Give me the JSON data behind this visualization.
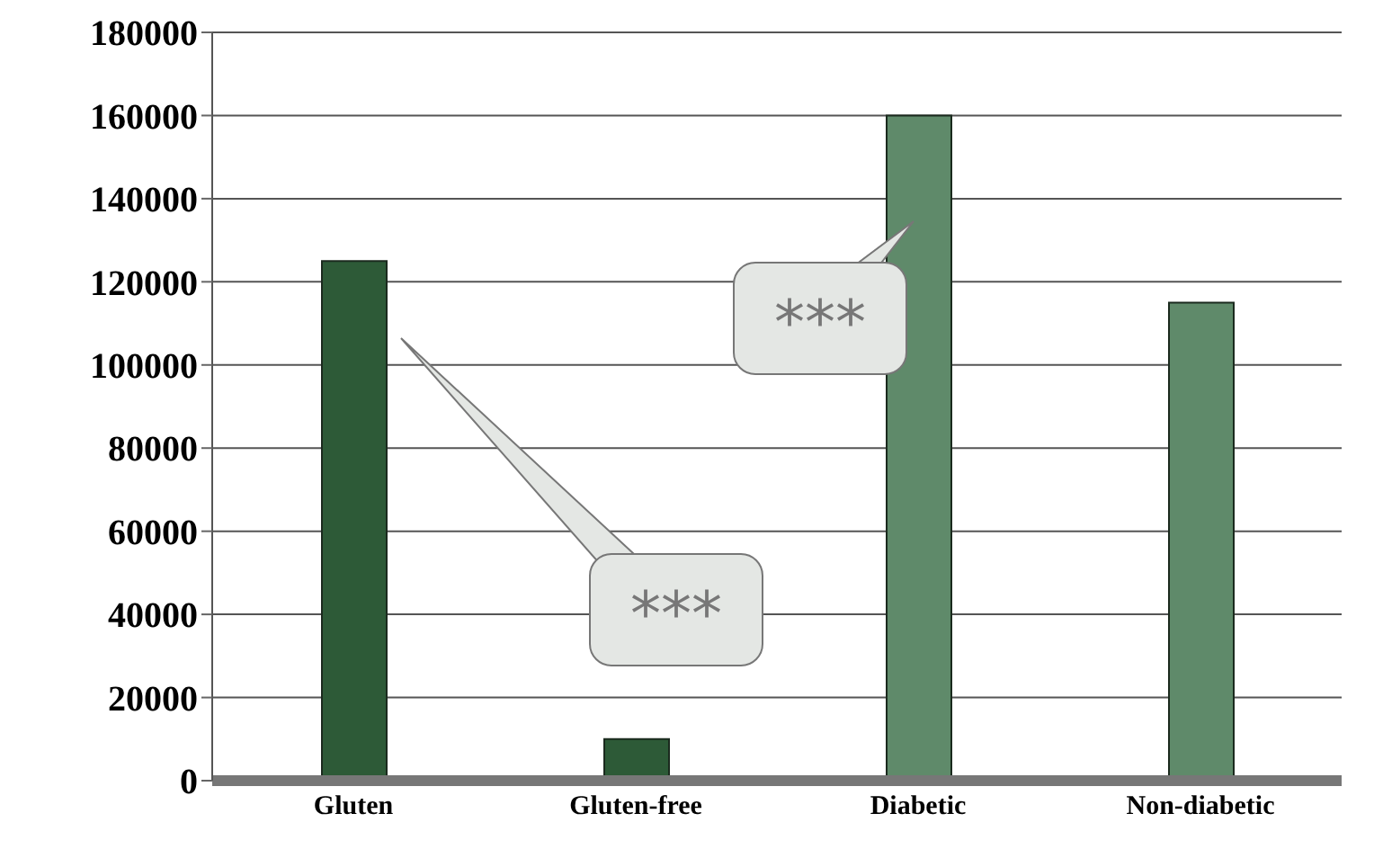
{
  "chart_data": {
    "type": "bar",
    "categories": [
      "Gluten",
      "Gluten-free",
      "Diabetic",
      "Non-diabetic"
    ],
    "values": [
      125000,
      10000,
      160000,
      115000
    ],
    "colors": [
      "#2d5a37",
      "#2d5a37",
      "#5f8a6a",
      "#5f8a6a"
    ],
    "ylim": [
      0,
      180000
    ],
    "yticks": [
      0,
      20000,
      40000,
      60000,
      80000,
      100000,
      120000,
      140000,
      160000,
      180000
    ],
    "grid": "y",
    "annotations": [
      "***",
      "***"
    ]
  }
}
